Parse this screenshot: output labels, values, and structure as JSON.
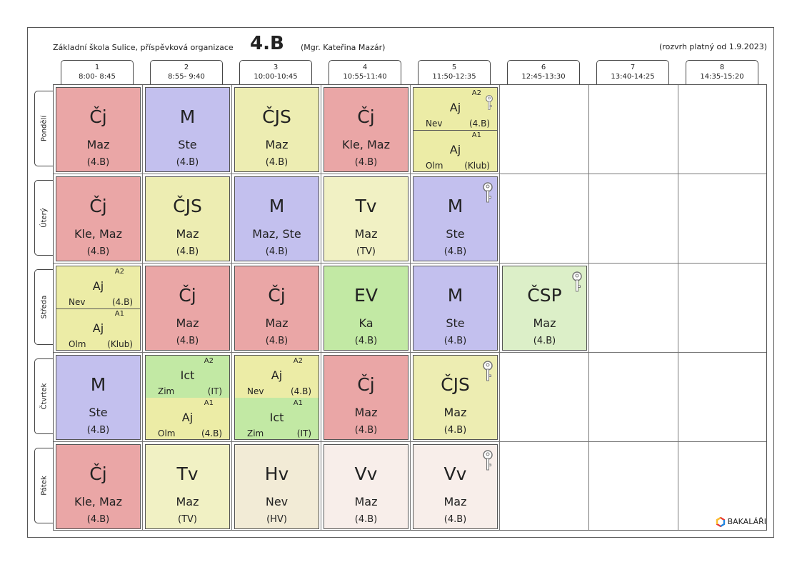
{
  "header": {
    "school": "Základní škola Sulice, příspěvková organizace",
    "class_name": "4.B",
    "teacher": "(Mgr. Kateřina Mazár)",
    "valid_from": "(rozvrh platný od 1.9.2023)"
  },
  "periods": [
    {
      "num": "1",
      "time": "8:00- 8:45"
    },
    {
      "num": "2",
      "time": "8:55- 9:40"
    },
    {
      "num": "3",
      "time": "10:00-10:45"
    },
    {
      "num": "4",
      "time": "10:55-11:40"
    },
    {
      "num": "5",
      "time": "11:50-12:35"
    },
    {
      "num": "6",
      "time": "12:45-13:30"
    },
    {
      "num": "7",
      "time": "13:40-14:25"
    },
    {
      "num": "8",
      "time": "14:35-15:20"
    }
  ],
  "days": [
    "Pondělí",
    "Úterý",
    "Středa",
    "Čtvrtek",
    "Pátek"
  ],
  "lessons": {
    "d0p0": {
      "subject": "Čj",
      "teacher": "Maz",
      "room": "(4.B)",
      "color": "#eaa6a6"
    },
    "d0p1": {
      "subject": "M",
      "teacher": "Ste",
      "room": "(4.B)",
      "color": "#c3c0ee"
    },
    "d0p2": {
      "subject": "ČJS",
      "teacher": "Maz",
      "room": "(4.B)",
      "color": "#ededb2"
    },
    "d0p3": {
      "subject": "Čj",
      "teacher": "Kle, Maz",
      "room": "(4.B)",
      "color": "#eaa6a6"
    },
    "d0p4a": {
      "group": "A2",
      "subject": "Aj",
      "teacher": "Nev",
      "room": "(4.B)"
    },
    "d0p4b": {
      "group": "A1",
      "subject": "Aj",
      "teacher": "Olm",
      "room": "(Klub)"
    },
    "d1p0": {
      "subject": "Čj",
      "teacher": "Kle, Maz",
      "room": "(4.B)"
    },
    "d1p1": {
      "subject": "ČJS",
      "teacher": "Maz",
      "room": "(4.B)"
    },
    "d1p2": {
      "subject": "M",
      "teacher": "Maz, Ste",
      "room": "(4.B)"
    },
    "d1p3": {
      "subject": "Tv",
      "teacher": "Maz",
      "room": "(TV)"
    },
    "d1p4": {
      "subject": "M",
      "teacher": "Ste",
      "room": "(4.B)"
    },
    "d2p0a": {
      "group": "A2",
      "subject": "Aj",
      "teacher": "Nev",
      "room": "(4.B)"
    },
    "d2p0b": {
      "group": "A1",
      "subject": "Aj",
      "teacher": "Olm",
      "room": "(Klub)"
    },
    "d2p1": {
      "subject": "Čj",
      "teacher": "Maz",
      "room": "(4.B)"
    },
    "d2p2": {
      "subject": "Čj",
      "teacher": "Maz",
      "room": "(4.B)"
    },
    "d2p3": {
      "subject": "EV",
      "teacher": "Ka",
      "room": "(4.B)"
    },
    "d2p4": {
      "subject": "M",
      "teacher": "Ste",
      "room": "(4.B)"
    },
    "d2p5": {
      "subject": "ČSP",
      "teacher": "Maz",
      "room": "(4.B)"
    },
    "d3p0": {
      "subject": "M",
      "teacher": "Ste",
      "room": "(4.B)"
    },
    "d3p1a": {
      "group": "A2",
      "subject": "Ict",
      "teacher": "Zim",
      "room": "(IT)"
    },
    "d3p1b": {
      "group": "A1",
      "subject": "Aj",
      "teacher": "Olm",
      "room": "(4.B)"
    },
    "d3p2a": {
      "group": "A2",
      "subject": "Aj",
      "teacher": "Nev",
      "room": "(4.B)"
    },
    "d3p2b": {
      "group": "A1",
      "subject": "Ict",
      "teacher": "Zim",
      "room": "(IT)"
    },
    "d3p3": {
      "subject": "Čj",
      "teacher": "Maz",
      "room": "(4.B)"
    },
    "d3p4": {
      "subject": "ČJS",
      "teacher": "Maz",
      "room": "(4.B)"
    },
    "d4p0": {
      "subject": "Čj",
      "teacher": "Kle, Maz",
      "room": "(4.B)"
    },
    "d4p1": {
      "subject": "Tv",
      "teacher": "Maz",
      "room": "(TV)"
    },
    "d4p2": {
      "subject": "Hv",
      "teacher": "Nev",
      "room": "(HV)"
    },
    "d4p3": {
      "subject": "Vv",
      "teacher": "Maz",
      "room": "(4.B)"
    },
    "d4p4": {
      "subject": "Vv",
      "teacher": "Maz",
      "room": "(4.B)"
    }
  },
  "icons": {
    "key": "key-icon",
    "logo": "bakalari-logo-icon"
  },
  "logo_text": "BAKALÁŘI"
}
